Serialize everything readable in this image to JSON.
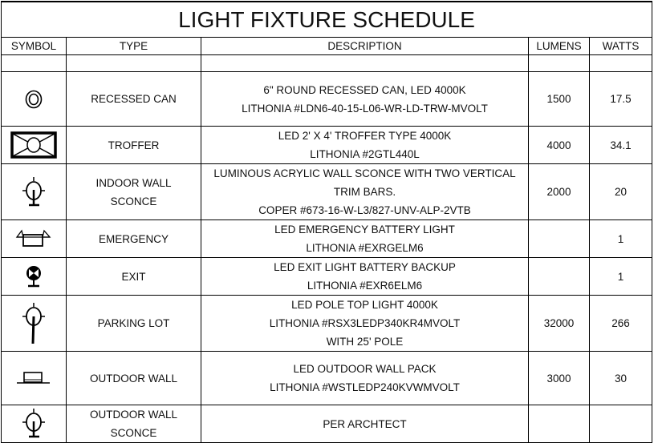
{
  "title": "LIGHT FIXTURE SCHEDULE",
  "headers": {
    "symbol": "SYMBOL",
    "type": "TYPE",
    "description": "DESCRIPTION",
    "lumens": "LUMENS",
    "watts": "WATTS"
  },
  "rows": [
    {
      "symbol": "recessed-can-icon",
      "type": [
        "RECESSED CAN"
      ],
      "description": [
        "6\" ROUND RECESSED CAN, LED 4000K",
        "LITHONIA #LDN6-40-15-L06-WR-LD-TRW-MVOLT"
      ],
      "lumens": "1500",
      "watts": "17.5"
    },
    {
      "symbol": "troffer-icon",
      "type": [
        "TROFFER"
      ],
      "description": [
        "LED  2' X 4' TROFFER TYPE 4000K",
        "LITHONIA #2GTL440L"
      ],
      "lumens": "4000",
      "watts": "34.1"
    },
    {
      "symbol": "wall-sconce-icon",
      "type": [
        "INDOOR WALL",
        "SCONCE"
      ],
      "description": [
        "LUMINOUS ACRYLIC WALL SCONCE WITH TWO VERTICAL",
        "TRIM BARS.",
        "COPER #673-16-W-L3/827-UNV-ALP-2VTB"
      ],
      "lumens": "2000",
      "watts": "20"
    },
    {
      "symbol": "emergency-light-icon",
      "type": [
        "EMERGENCY"
      ],
      "description": [
        "LED EMERGENCY BATTERY LIGHT",
        "LITHONIA #EXRGELM6"
      ],
      "lumens": "",
      "watts": "1"
    },
    {
      "symbol": "exit-sign-icon",
      "type": [
        "EXIT"
      ],
      "description": [
        "LED EXIT LIGHT BATTERY BACKUP",
        "LITHONIA #EXR6ELM6"
      ],
      "lumens": "",
      "watts": "1"
    },
    {
      "symbol": "pole-light-icon",
      "type": [
        "PARKING LOT"
      ],
      "description": [
        "LED POLE TOP LIGHT 4000K",
        "LITHONIA #RSX3LEDP340KR4MVOLT",
        "WITH 25' POLE"
      ],
      "lumens": "32000",
      "watts": "266"
    },
    {
      "symbol": "wall-pack-icon",
      "type": [
        "OUTDOOR WALL"
      ],
      "description": [
        "LED OUTDOOR WALL PACK",
        "LITHONIA #WSTLEDP240KVWMVOLT"
      ],
      "lumens": "3000",
      "watts": "30"
    },
    {
      "symbol": "wall-sconce-icon",
      "type": [
        "OUTDOOR WALL",
        "SCONCE"
      ],
      "description": [
        "PER ARCHTECT"
      ],
      "lumens": "",
      "watts": ""
    }
  ]
}
